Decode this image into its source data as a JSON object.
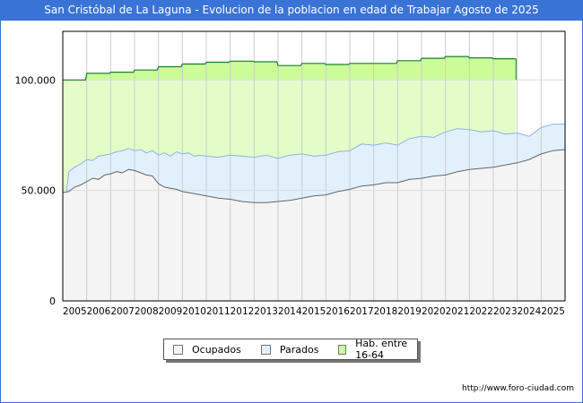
{
  "header": {
    "title": "San Cristóbal de La Laguna - Evolucion de la poblacion en edad de Trabajar Agosto de 2025"
  },
  "footer": {
    "url": "http://www.foro-ciudad.com"
  },
  "colors": {
    "title_bg": "#3a73d6",
    "ocupados_fill": "#f4f4f4",
    "ocupados_line": "#666666",
    "parados_fill": "#e2f0fc",
    "parados_line": "#8fb3e6",
    "hab_fill": "#e4fcc8",
    "hab_fill_top": "#ccfc98",
    "hab_line": "#1a7f2e",
    "grid": "#cccccc"
  },
  "chart_data": {
    "type": "area",
    "title": "San Cristóbal de La Laguna - Evolucion de la poblacion en edad de Trabajar Agosto de 2025",
    "xlabel": "",
    "ylabel": "",
    "ylim": [
      0,
      122000
    ],
    "xlim": [
      2005,
      2026
    ],
    "grid": true,
    "legend_position": "bottom-center",
    "y_ticks": [
      {
        "value": 0,
        "label": "0"
      },
      {
        "value": 50000,
        "label": "50.000"
      },
      {
        "value": 100000,
        "label": "100.000"
      }
    ],
    "x_ticks": [
      "2005",
      "2006",
      "2007",
      "2008",
      "2009",
      "2010",
      "2011",
      "2012",
      "2013",
      "2014",
      "2015",
      "2016",
      "2017",
      "2018",
      "2019",
      "2020",
      "2021",
      "2022",
      "2023",
      "2024",
      "2025"
    ],
    "legend": [
      "Ocupados",
      "Parados",
      "Hab. entre 16-64"
    ],
    "series": [
      {
        "name": "Hab. entre 16-64",
        "x": [
          2005.0,
          2005.95,
          2006.0,
          2006.95,
          2007.0,
          2007.95,
          2008.0,
          2008.95,
          2009.0,
          2009.95,
          2010.0,
          2010.95,
          2011.0,
          2011.95,
          2012.0,
          2012.95,
          2013.0,
          2013.95,
          2014.0,
          2014.95,
          2015.0,
          2015.95,
          2016.0,
          2016.95,
          2017.0,
          2017.95,
          2018.0,
          2018.95,
          2019.0,
          2019.95,
          2020.0,
          2020.95,
          2021.0,
          2021.95,
          2022.0,
          2022.95,
          2023.0,
          2023.95
        ],
        "values": [
          100000,
          100000,
          103000,
          103000,
          103500,
          103500,
          104500,
          104500,
          106000,
          106000,
          107200,
          107200,
          108000,
          108000,
          108500,
          108500,
          108200,
          108200,
          106500,
          106500,
          107500,
          107500,
          107000,
          107000,
          107500,
          107500,
          107500,
          107500,
          108700,
          108700,
          109800,
          109800,
          110600,
          110600,
          110000,
          110000,
          109600,
          109600
        ]
      },
      {
        "name": "Parados",
        "x": [
          2005.15,
          2005.25,
          2005.5,
          2005.75,
          2006.0,
          2006.25,
          2006.5,
          2006.75,
          2007.0,
          2007.25,
          2007.5,
          2007.75,
          2008.0,
          2008.25,
          2008.5,
          2008.75,
          2009.0,
          2009.25,
          2009.5,
          2009.75,
          2010.0,
          2010.25,
          2010.5,
          2010.75,
          2011.0,
          2011.5,
          2012.0,
          2012.5,
          2013.0,
          2013.5,
          2014.0,
          2014.5,
          2015.0,
          2015.5,
          2016.0,
          2016.5,
          2017.0,
          2017.5,
          2018.0,
          2018.5,
          2019.0,
          2019.5,
          2020.0,
          2020.5,
          2021.0,
          2021.5,
          2022.0,
          2022.5,
          2023.0,
          2023.5,
          2024.0,
          2024.5,
          2025.0,
          2025.5,
          2026.0
        ],
        "values": [
          49000,
          58500,
          60500,
          62000,
          64000,
          63500,
          65500,
          66000,
          66500,
          67500,
          68000,
          69000,
          68000,
          68500,
          67000,
          68000,
          66000,
          67000,
          65500,
          67500,
          66500,
          67000,
          65500,
          66000,
          65500,
          65000,
          66000,
          65500,
          65000,
          66000,
          64500,
          66000,
          66500,
          65500,
          66000,
          67500,
          68000,
          71000,
          70500,
          71500,
          70500,
          73500,
          74500,
          74000,
          76500,
          78000,
          77500,
          76500,
          77000,
          75500,
          76000,
          74500,
          78500,
          80000,
          80000
        ]
      },
      {
        "name": "Ocupados",
        "x": [
          2005.0,
          2005.25,
          2005.5,
          2005.75,
          2006.0,
          2006.25,
          2006.5,
          2006.75,
          2007.0,
          2007.25,
          2007.5,
          2007.75,
          2008.0,
          2008.25,
          2008.5,
          2008.75,
          2009.0,
          2009.25,
          2009.5,
          2009.75,
          2010.0,
          2010.5,
          2011.0,
          2011.5,
          2012.0,
          2012.5,
          2013.0,
          2013.5,
          2014.0,
          2014.5,
          2015.0,
          2015.5,
          2016.0,
          2016.5,
          2017.0,
          2017.5,
          2018.0,
          2018.5,
          2019.0,
          2019.5,
          2020.0,
          2020.5,
          2021.0,
          2021.5,
          2022.0,
          2022.5,
          2023.0,
          2023.5,
          2024.0,
          2024.5,
          2025.0,
          2025.5,
          2026.0
        ],
        "values": [
          49000,
          49500,
          51500,
          52500,
          54000,
          55500,
          55000,
          57000,
          57500,
          58500,
          58000,
          59500,
          59000,
          58000,
          57000,
          56500,
          53000,
          51500,
          51000,
          50500,
          49500,
          48500,
          47500,
          46500,
          46000,
          45000,
          44500,
          44500,
          45000,
          45500,
          46500,
          47500,
          48000,
          49500,
          50500,
          52000,
          52500,
          53500,
          53500,
          55000,
          55500,
          56500,
          57000,
          58500,
          59500,
          60000,
          60500,
          61500,
          62500,
          64000,
          66500,
          68000,
          68500
        ]
      }
    ]
  }
}
